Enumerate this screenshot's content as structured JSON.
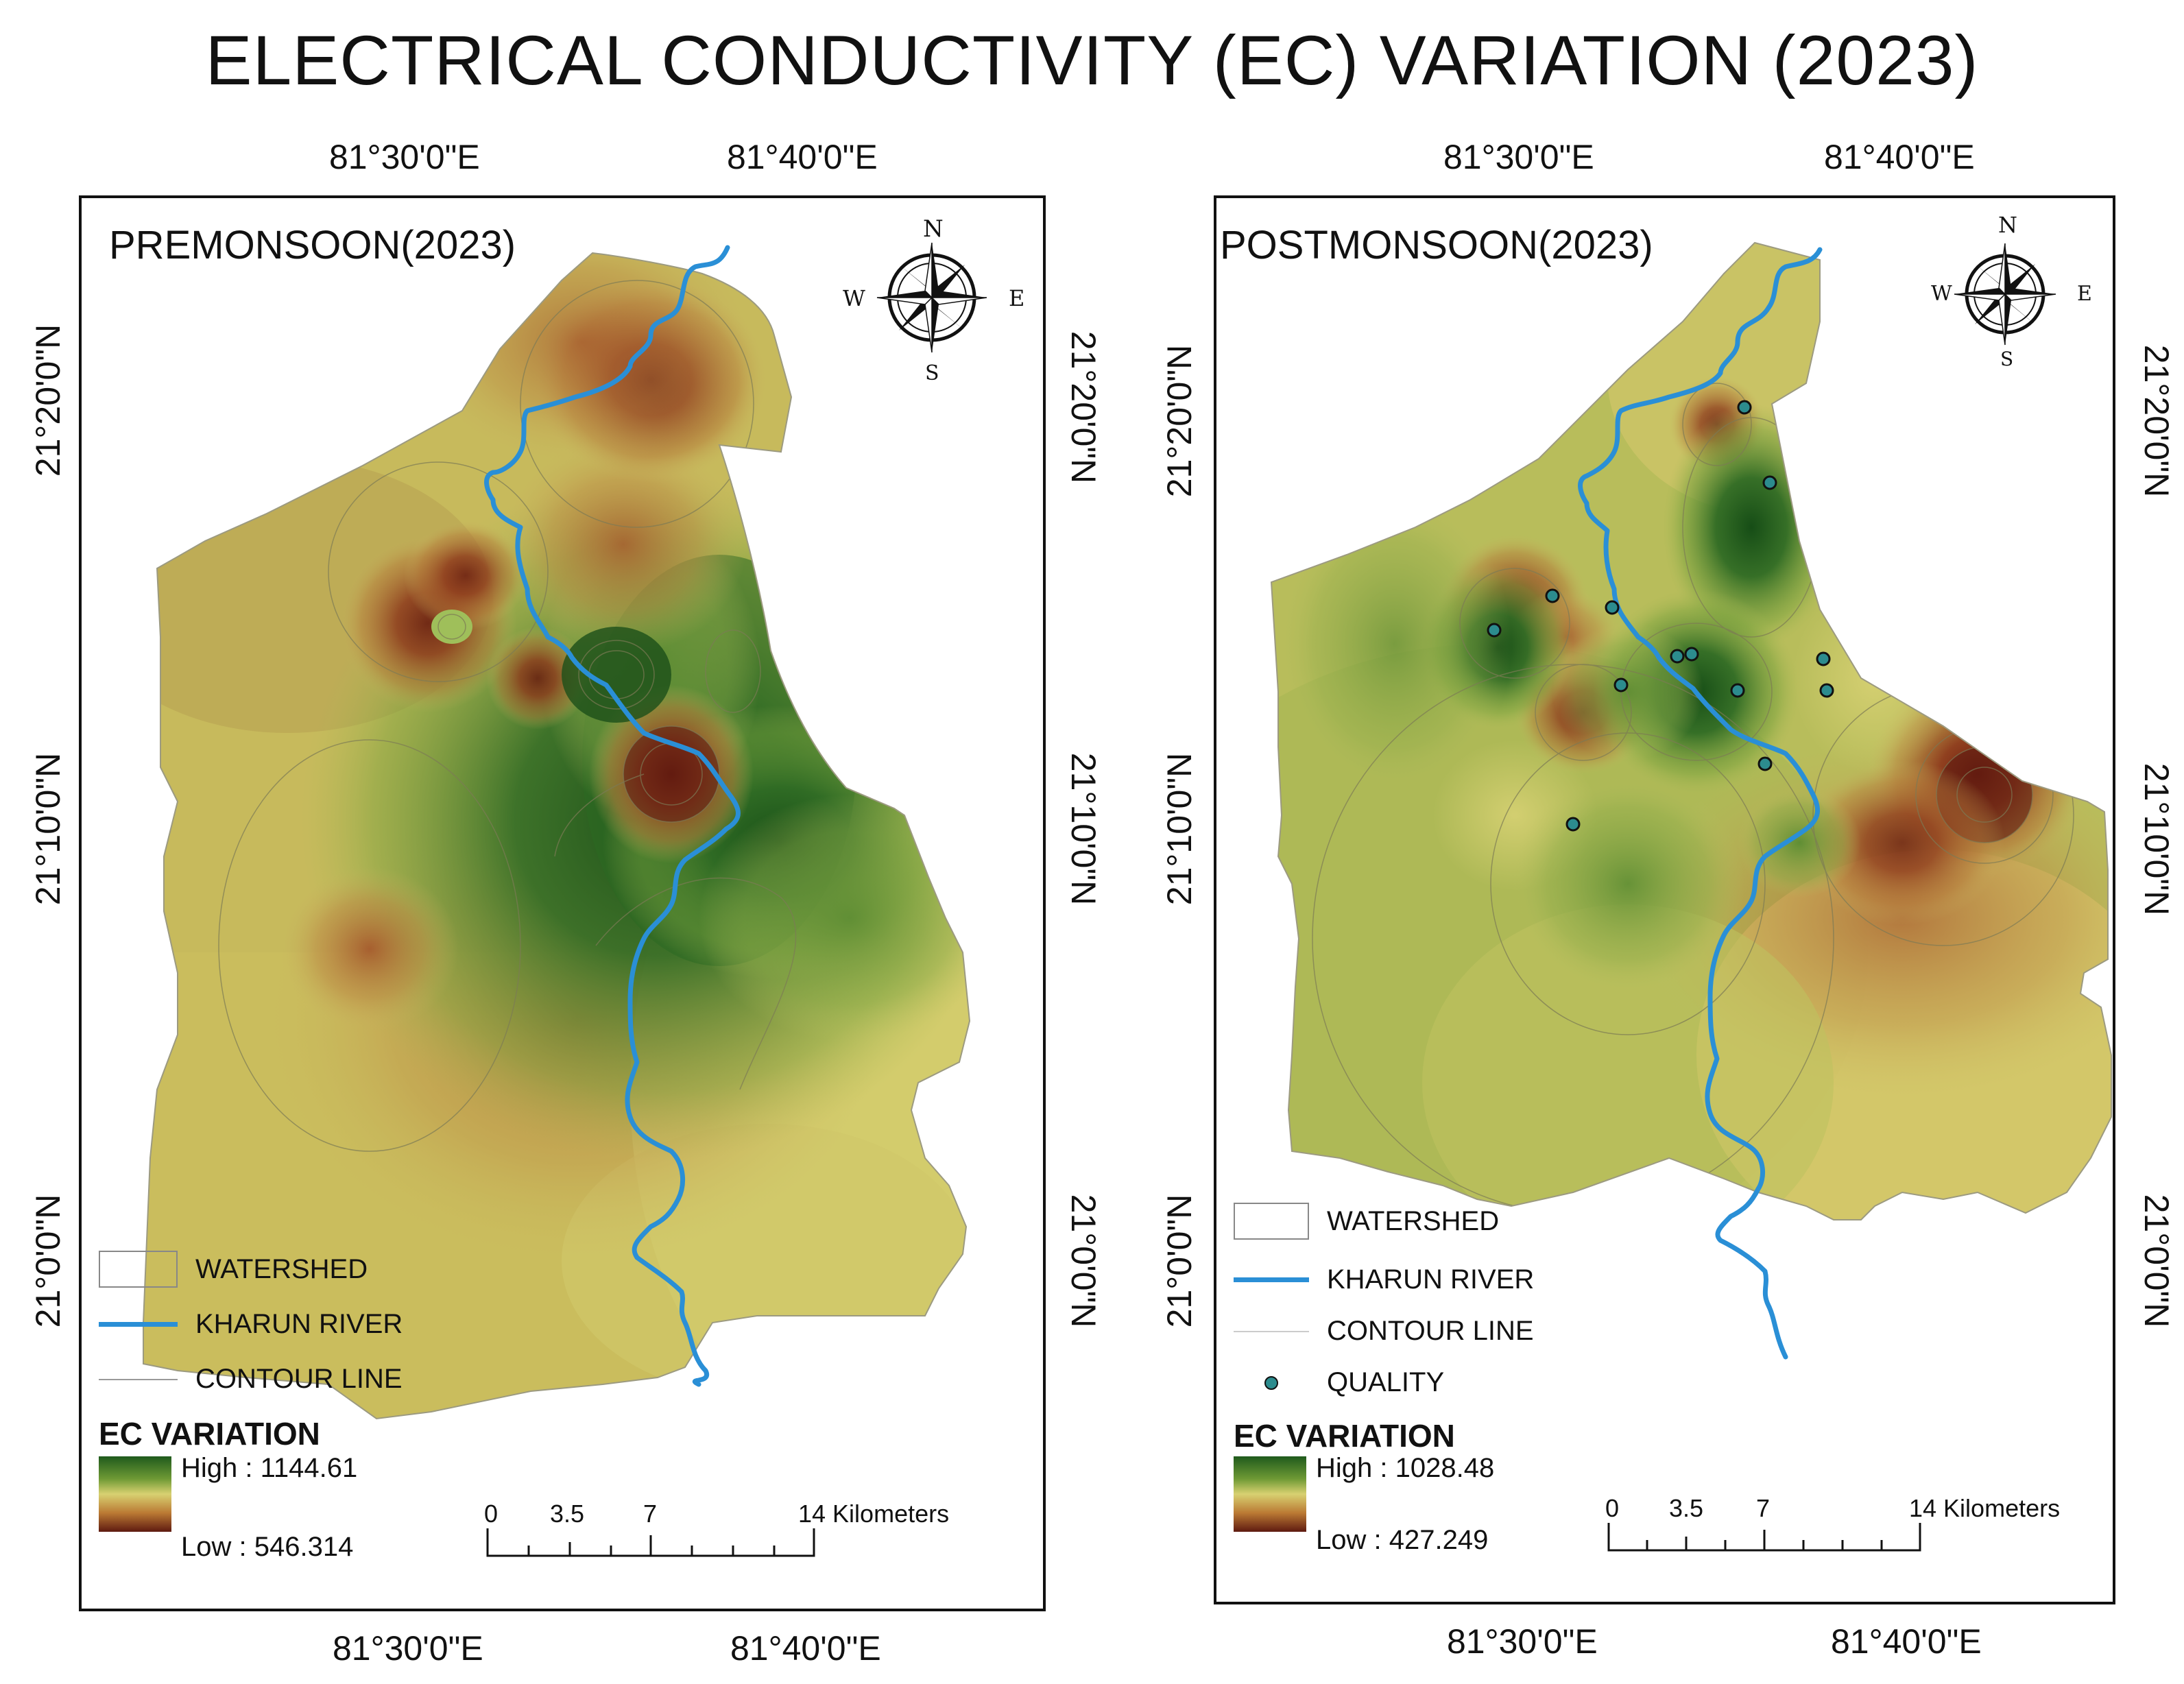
{
  "title": "ELECTRICAL CONDUCTIVITY (EC) VARIATION (2023)",
  "colors": {
    "river": "#2a8fd6",
    "ramp_high": "#1f5a1c",
    "ramp_mid": "#d8d171",
    "ramp_low": "#5e1a10",
    "contour": "#7a7a5a",
    "quality_point": "#2c8c8e"
  },
  "panels": [
    {
      "name": "PREMONSOON(2023)",
      "lon_top": [
        "81°30'0\"E",
        "81°40'0\"E"
      ],
      "lon_bottom": [
        "81°30'0\"E",
        "81°40'0\"E"
      ],
      "lat_left": [
        "21°20'0\"N",
        "21°10'0\"N",
        "21°0'0\"N"
      ],
      "lat_right": [
        "21°20'0\"N",
        "21°10'0\"N",
        "21°0'0\"N"
      ],
      "compass": {
        "n": "N",
        "s": "S",
        "e": "E",
        "w": "W"
      },
      "legend": {
        "watershed": "WATERSHED",
        "river": "KHARUN RIVER",
        "contour": "CONTOUR LINE"
      },
      "ec": {
        "heading": "EC VARIATION",
        "high": "High : 1144.61",
        "low": "Low : 546.314"
      },
      "scale": {
        "ticks": [
          "0",
          "3.5",
          "7",
          "14 Kilometers"
        ]
      }
    },
    {
      "name": "POSTMONSOON(2023)",
      "lon_top": [
        "81°30'0\"E",
        "81°40'0\"E"
      ],
      "lon_bottom": [
        "81°30'0\"E",
        "81°40'0\"E"
      ],
      "lat_left": [
        "21°20'0\"N",
        "21°10'0\"N",
        "21°0'0\"N"
      ],
      "lat_right": [
        "21°20'0\"N",
        "21°10'0\"N",
        "21°0'0\"N"
      ],
      "compass": {
        "n": "N",
        "s": "S",
        "e": "E",
        "w": "W"
      },
      "legend": {
        "watershed": "WATERSHED",
        "river": "KHARUN RIVER",
        "contour": "CONTOUR LINE",
        "quality": "QUALITY"
      },
      "ec": {
        "heading": "EC VARIATION",
        "high": "High : 1028.48",
        "low": "Low : 427.249"
      },
      "scale": {
        "ticks": [
          "0",
          "3.5",
          "7",
          "14 Kilometers"
        ]
      }
    }
  ]
}
